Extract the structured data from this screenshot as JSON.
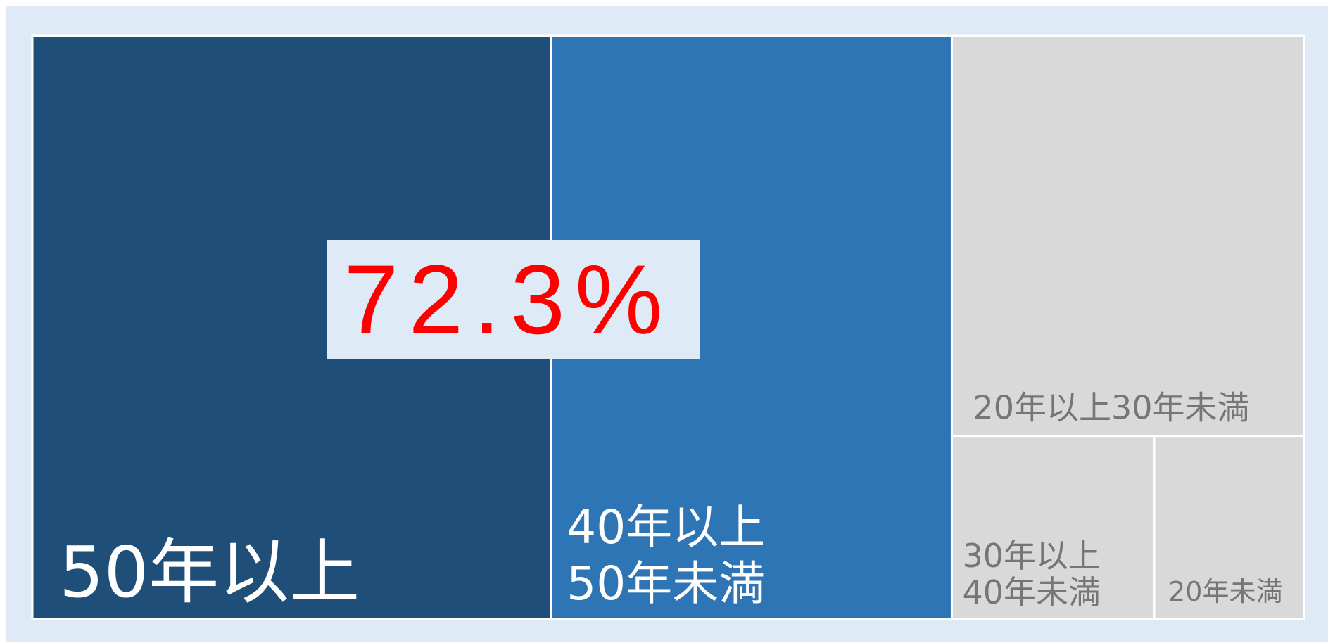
{
  "chart_data": {
    "type": "treemap",
    "categories": [
      "50年以上",
      "40年以上\n50年未満",
      "20年以上30年未満",
      "30年以上\n40年未満",
      "20年未満"
    ],
    "values": [
      40.8,
      31.5,
      19.0,
      5.0,
      3.7
    ],
    "colors": [
      "#1f4e79",
      "#2e75b6",
      "#d9d9d9",
      "#d9d9d9",
      "#d9d9d9"
    ],
    "label_colors": [
      "#ffffff",
      "#ffffff",
      "#767676",
      "#767676",
      "#767676"
    ],
    "annotation": "72.3%"
  }
}
